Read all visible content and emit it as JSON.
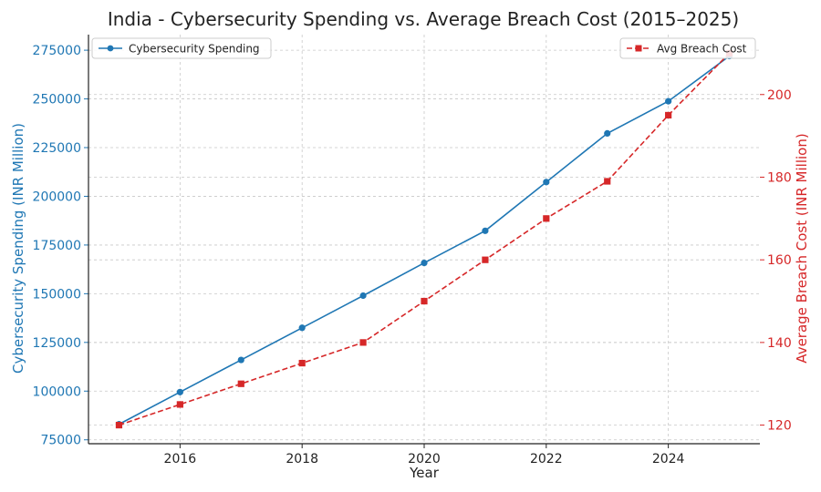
{
  "chart_data": {
    "type": "line",
    "title": "India - Cybersecurity Spending vs. Average Breach Cost (2015–2025)",
    "xlabel": "Year",
    "x": [
      2015,
      2016,
      2017,
      2018,
      2019,
      2020,
      2021,
      2022,
      2023,
      2024,
      2025
    ],
    "xlim": [
      2014.5,
      2025.5
    ],
    "xticks": [
      "2016",
      "2018",
      "2020",
      "2022",
      "2024"
    ],
    "grid": true,
    "series": [
      {
        "name": "Cybersecurity Spending",
        "axis": "left",
        "color": "#1f77b4",
        "marker": "circle",
        "linestyle": "solid",
        "values": [
          83000,
          99500,
          116000,
          132500,
          149000,
          165800,
          182300,
          207300,
          232300,
          248800,
          272000
        ]
      },
      {
        "name": "Avg Breach Cost",
        "axis": "right",
        "color": "#d62728",
        "marker": "square",
        "linestyle": "dashed",
        "values": [
          120,
          125,
          130,
          135,
          140,
          150,
          160,
          170,
          179,
          195,
          210
        ]
      }
    ],
    "left_axis": {
      "label": "Cybersecurity Spending (INR Million)",
      "color": "#1f77b4",
      "ylim": [
        73000,
        283000
      ],
      "ticks": [
        "75000",
        "100000",
        "125000",
        "150000",
        "175000",
        "200000",
        "225000",
        "250000",
        "275000"
      ]
    },
    "right_axis": {
      "label": "Average Breach Cost (INR Million)",
      "color": "#d62728",
      "ylim": [
        115.5,
        214.5
      ],
      "ticks": [
        "120",
        "140",
        "160",
        "180",
        "200"
      ]
    },
    "legends": [
      {
        "label": "Cybersecurity Spending",
        "position": "upper-left"
      },
      {
        "label": "Avg Breach Cost",
        "position": "upper-right"
      }
    ]
  }
}
